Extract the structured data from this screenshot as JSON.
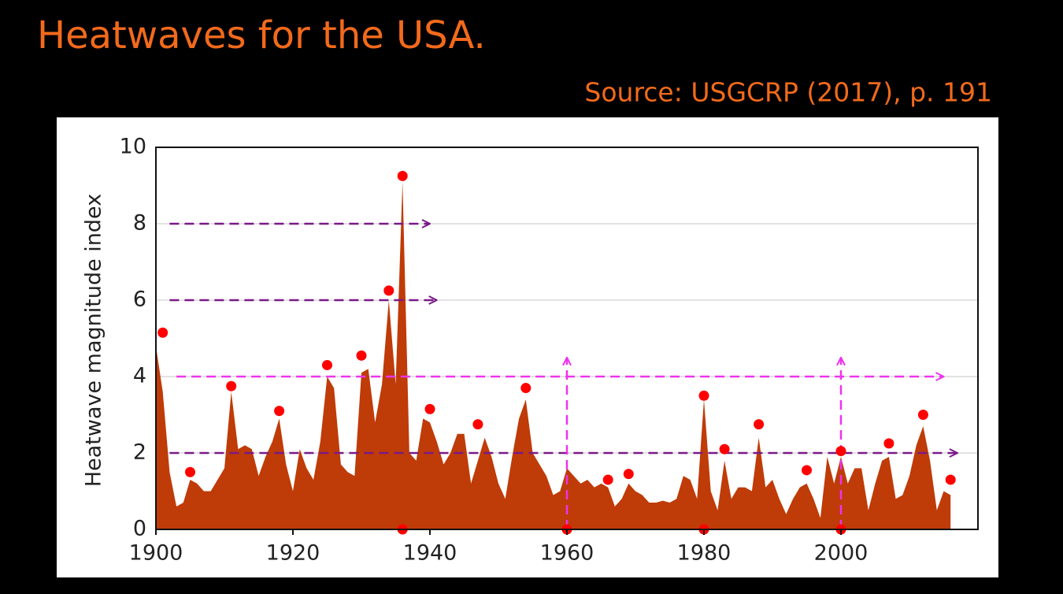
{
  "chart_data": {
    "type": "area",
    "title": "Heatwaves for the USA.",
    "subtitle": "Source: USGCRP (2017), p. 191",
    "y_label": "Heatwave magnitude index",
    "xlim": [
      1900,
      2020
    ],
    "ylim": [
      0,
      10
    ],
    "xticks": [
      1900,
      1920,
      1940,
      1960,
      1980,
      2000
    ],
    "yticks": [
      0,
      2,
      4,
      6,
      8,
      10
    ],
    "grid": true,
    "series": [
      {
        "color": "#bf3b08",
        "x": [
          1900,
          1901,
          1902,
          1903,
          1904,
          1905,
          1906,
          1907,
          1908,
          1909,
          1910,
          1911,
          1912,
          1913,
          1914,
          1915,
          1916,
          1917,
          1918,
          1919,
          1920,
          1921,
          1922,
          1923,
          1924,
          1925,
          1926,
          1927,
          1928,
          1929,
          1930,
          1931,
          1932,
          1933,
          1934,
          1935,
          1936,
          1937,
          1938,
          1939,
          1940,
          1941,
          1942,
          1943,
          1944,
          1945,
          1946,
          1947,
          1948,
          1949,
          1950,
          1951,
          1952,
          1953,
          1954,
          1955,
          1956,
          1957,
          1958,
          1959,
          1960,
          1961,
          1962,
          1963,
          1964,
          1965,
          1966,
          1967,
          1968,
          1969,
          1970,
          1971,
          1972,
          1973,
          1974,
          1975,
          1976,
          1977,
          1978,
          1979,
          1980,
          1981,
          1982,
          1983,
          1984,
          1985,
          1986,
          1987,
          1988,
          1989,
          1990,
          1991,
          1992,
          1993,
          1994,
          1995,
          1996,
          1997,
          1998,
          1999,
          2000,
          2001,
          2002,
          2003,
          2004,
          2005,
          2006,
          2007,
          2008,
          2009,
          2010,
          2011,
          2012,
          2013,
          2014,
          2015,
          2016
        ],
        "values": [
          4.8,
          3.6,
          1.5,
          0.6,
          0.7,
          1.3,
          1.2,
          1.0,
          1.0,
          1.3,
          1.6,
          3.6,
          2.1,
          2.2,
          2.1,
          1.4,
          1.9,
          2.3,
          2.9,
          1.7,
          1.0,
          2.1,
          1.6,
          1.3,
          2.3,
          4.0,
          3.7,
          1.7,
          1.5,
          1.4,
          4.1,
          4.2,
          2.8,
          3.8,
          6.0,
          3.8,
          9.1,
          2.0,
          1.8,
          2.9,
          2.8,
          2.3,
          1.7,
          2.0,
          2.5,
          2.5,
          1.2,
          1.8,
          2.4,
          1.9,
          1.2,
          0.8,
          1.9,
          2.9,
          3.4,
          2.0,
          1.7,
          1.4,
          0.9,
          1.0,
          1.6,
          1.4,
          1.2,
          1.3,
          1.1,
          1.2,
          1.1,
          0.6,
          0.8,
          1.2,
          1.0,
          0.9,
          0.7,
          0.7,
          0.75,
          0.7,
          0.8,
          1.4,
          1.3,
          0.8,
          3.4,
          1.0,
          0.5,
          1.8,
          0.8,
          1.1,
          1.1,
          1.0,
          2.4,
          1.1,
          1.3,
          0.8,
          0.4,
          0.8,
          1.1,
          1.2,
          0.8,
          0.3,
          1.9,
          1.2,
          1.9,
          1.2,
          1.6,
          1.6,
          0.5,
          1.2,
          1.8,
          1.9,
          0.8,
          0.9,
          1.4,
          2.2,
          2.7,
          1.8,
          0.5,
          1.0,
          0.9
        ]
      }
    ],
    "points": {
      "color": "#ff0000",
      "x": [
        1901,
        1905,
        1911,
        1918,
        1925,
        1930,
        1934,
        1936,
        1940,
        1947,
        1954,
        1966,
        1969,
        1980,
        1983,
        1988,
        1995,
        2000,
        2007,
        2012,
        2016,
        1936,
        1960,
        1980,
        2000
      ],
      "values": [
        5.15,
        1.5,
        3.75,
        3.1,
        4.3,
        4.55,
        6.25,
        9.25,
        3.15,
        2.75,
        3.7,
        1.3,
        1.45,
        3.5,
        2.1,
        2.75,
        1.55,
        2.05,
        2.25,
        3.0,
        1.3,
        0,
        0,
        0,
        0
      ]
    },
    "arrows": [
      {
        "y": 8,
        "x": [
          1902,
          1940
        ],
        "color": "#7a1a88"
      },
      {
        "y": 6,
        "x": [
          1902,
          1941
        ],
        "color": "#7a1a88"
      },
      {
        "y": 4,
        "x": [
          1903,
          2015
        ],
        "color": "#ee33ee"
      },
      {
        "y": 2,
        "x": [
          1902,
          2017
        ],
        "color": "#7a1a88"
      },
      {
        "x": 1960,
        "y": [
          0,
          4.5
        ],
        "color": "#ee33ee"
      },
      {
        "x": 2000,
        "y": [
          0,
          4.5
        ],
        "color": "#ee33ee"
      }
    ]
  }
}
